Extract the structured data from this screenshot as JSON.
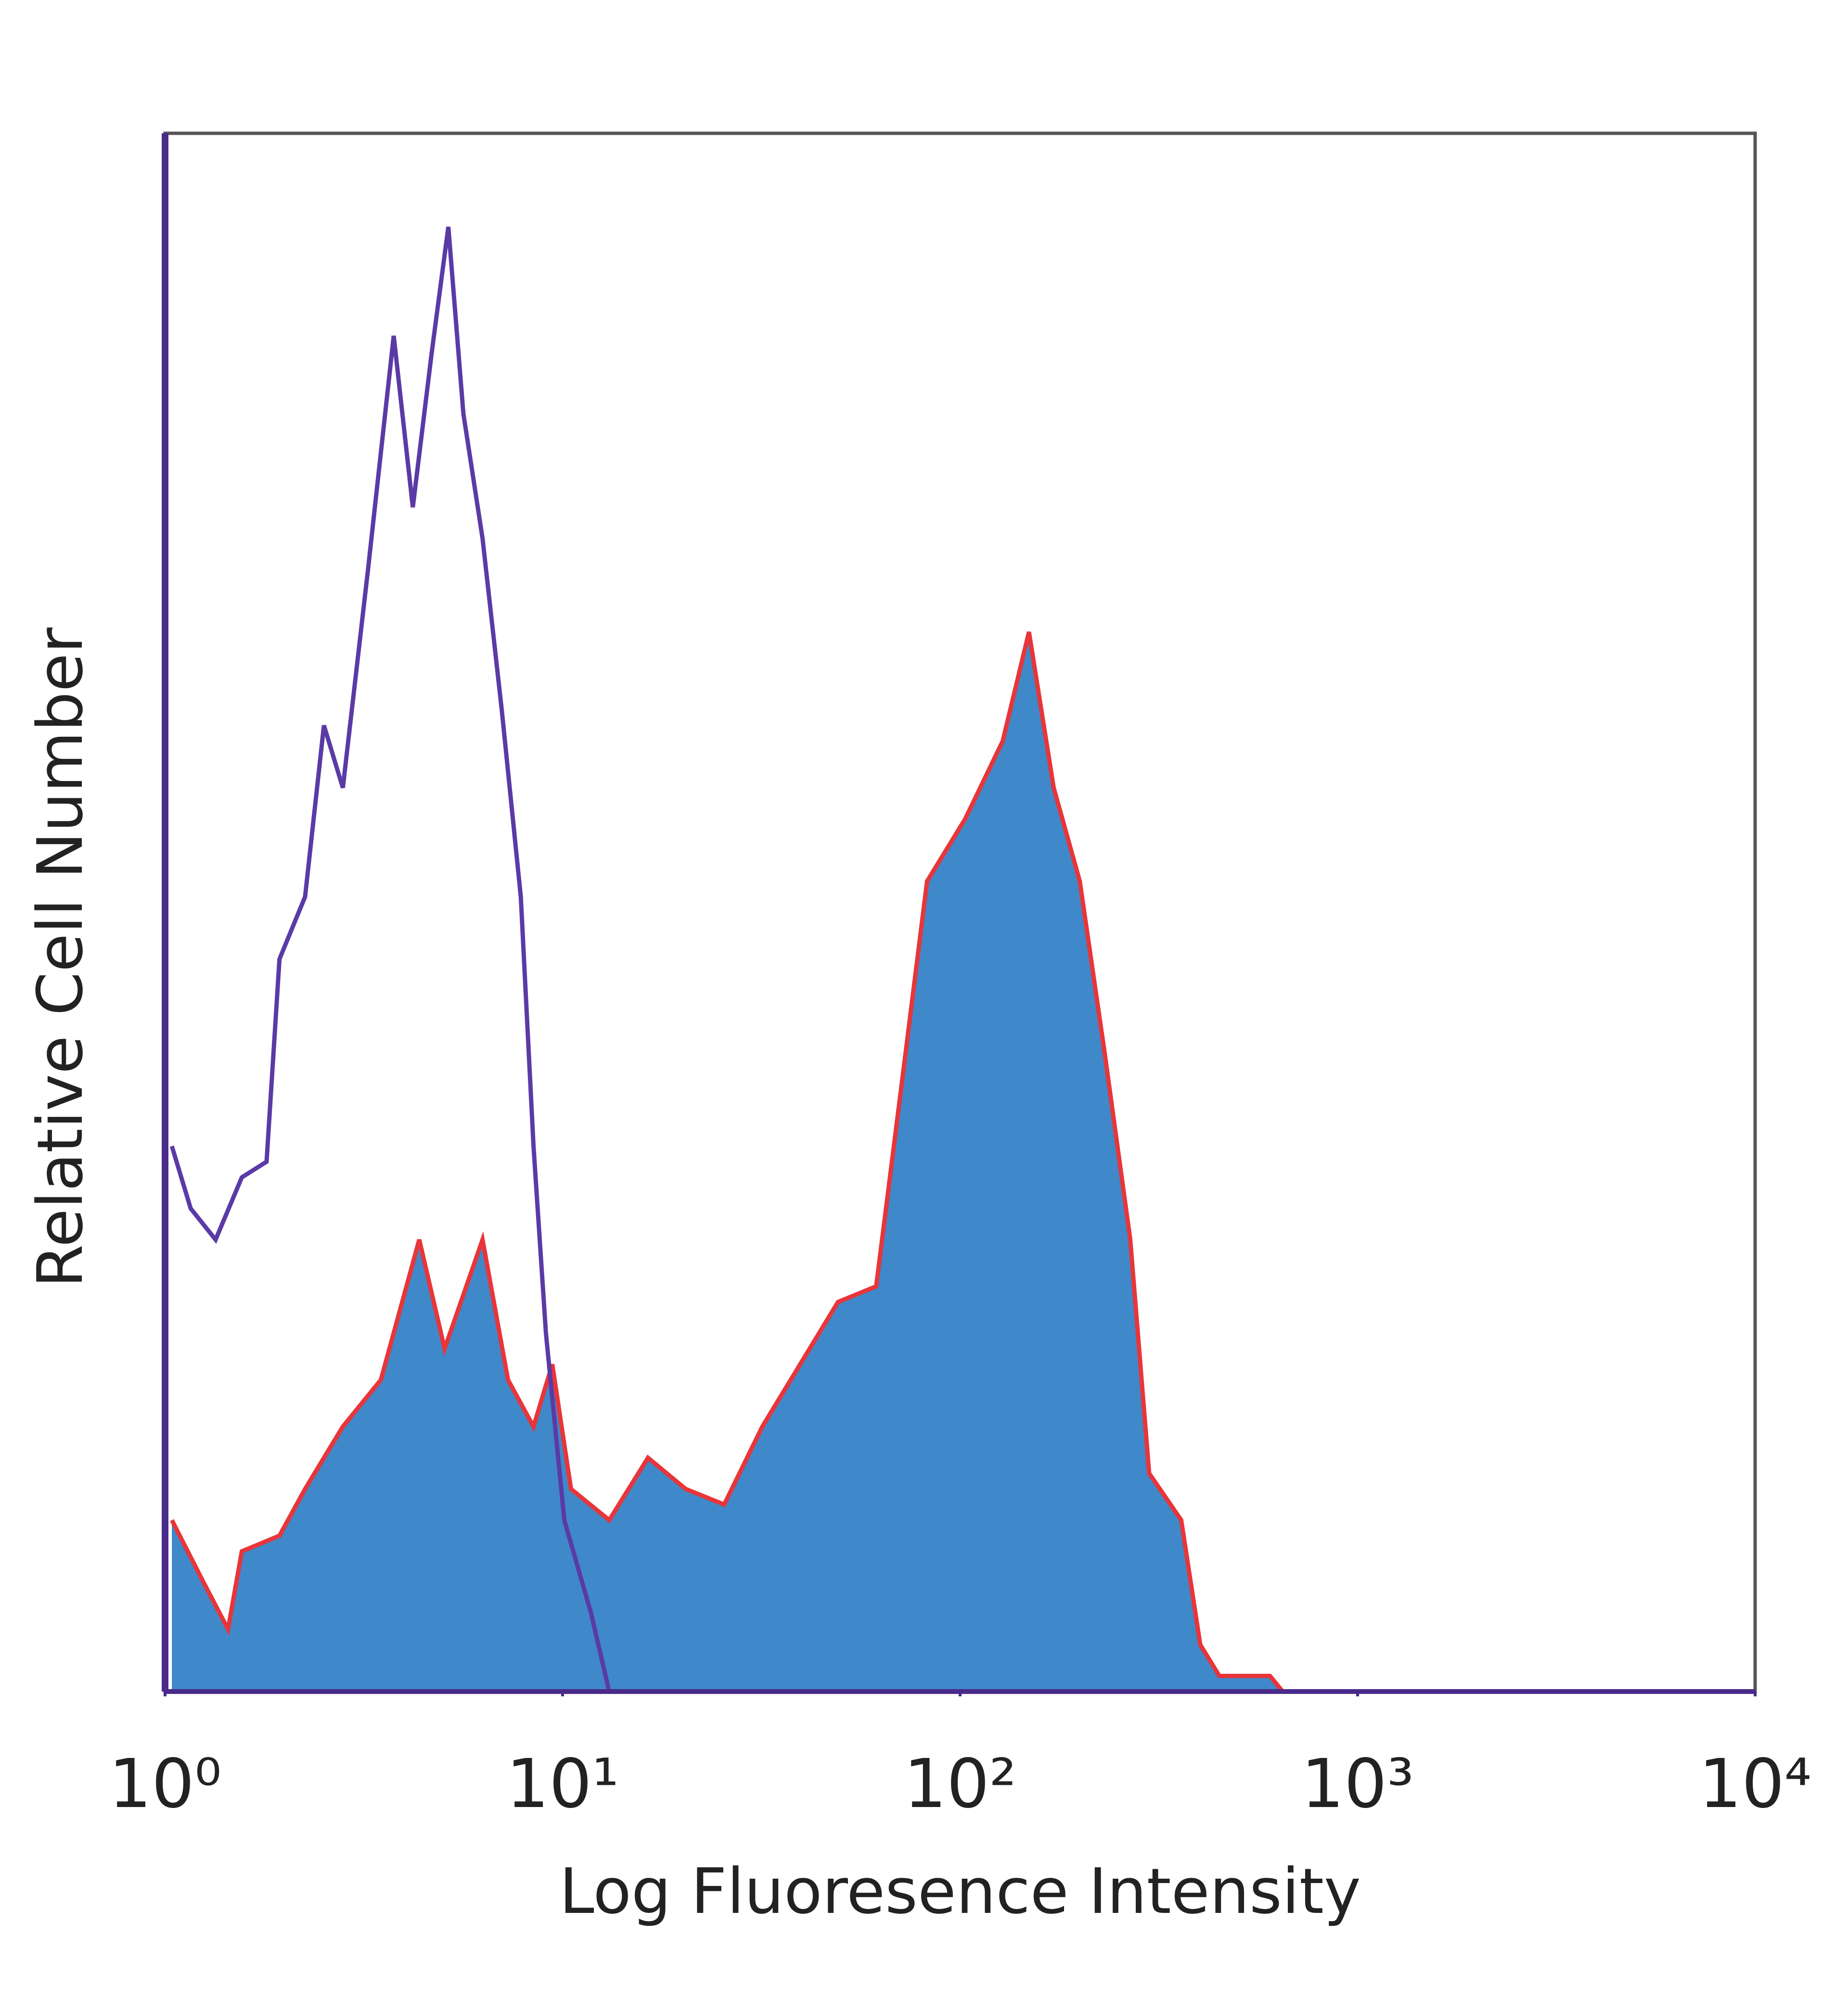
{
  "chart_data": {
    "type": "line",
    "xlabel": "Log Fluoresence Intensity",
    "ylabel": "Relative Cell Number",
    "xscale": "log",
    "xlim": [
      1,
      10000
    ],
    "ylim": [
      0,
      100
    ],
    "xticks": [
      {
        "value": 1,
        "label": "10⁰"
      },
      {
        "value": 10,
        "label": "10¹"
      },
      {
        "value": 100,
        "label": "10²"
      },
      {
        "value": 1000,
        "label": "10³"
      },
      {
        "value": 10000,
        "label": "10⁴"
      }
    ],
    "series": [
      {
        "color": "#5b3aa6",
        "x": [
          1.04,
          1.16,
          1.34,
          1.56,
          1.8,
          1.94,
          2.25,
          2.51,
          2.8,
          3.24,
          3.76,
          4.2,
          4.69,
          5.16,
          5.63,
          6.29,
          7.03,
          7.85,
          8.45,
          9.08,
          10.1,
          11.8,
          13.1
        ],
        "values": [
          35,
          31,
          29,
          33,
          34,
          47,
          51,
          62,
          58,
          72,
          87,
          76,
          86,
          94,
          82,
          74,
          63,
          51,
          35,
          23,
          11,
          5,
          0
        ]
      },
      {
        "color": "#e8353a",
        "fill": "#3f88c9",
        "x": [
          1.04,
          1.25,
          1.44,
          1.56,
          1.94,
          2.25,
          2.8,
          3.49,
          4.36,
          5.05,
          6.29,
          7.29,
          8.45,
          9.42,
          10.5,
          13.1,
          16.4,
          20.4,
          25.5,
          31.8,
          39.6,
          49.3,
          61.5,
          71.3,
          82.6,
          103,
          128,
          149,
          172,
          200,
          231,
          268,
          299,
          360,
          402,
          449,
          602,
          648
        ],
        "values": [
          11,
          7,
          4,
          9,
          10,
          13,
          17,
          20,
          29,
          22,
          29,
          20,
          17,
          21,
          13,
          11,
          15,
          13,
          12,
          17,
          21,
          25,
          26,
          39,
          52,
          56,
          61,
          68,
          58,
          52,
          41,
          29,
          14,
          11,
          3,
          1,
          1,
          0
        ]
      }
    ]
  }
}
